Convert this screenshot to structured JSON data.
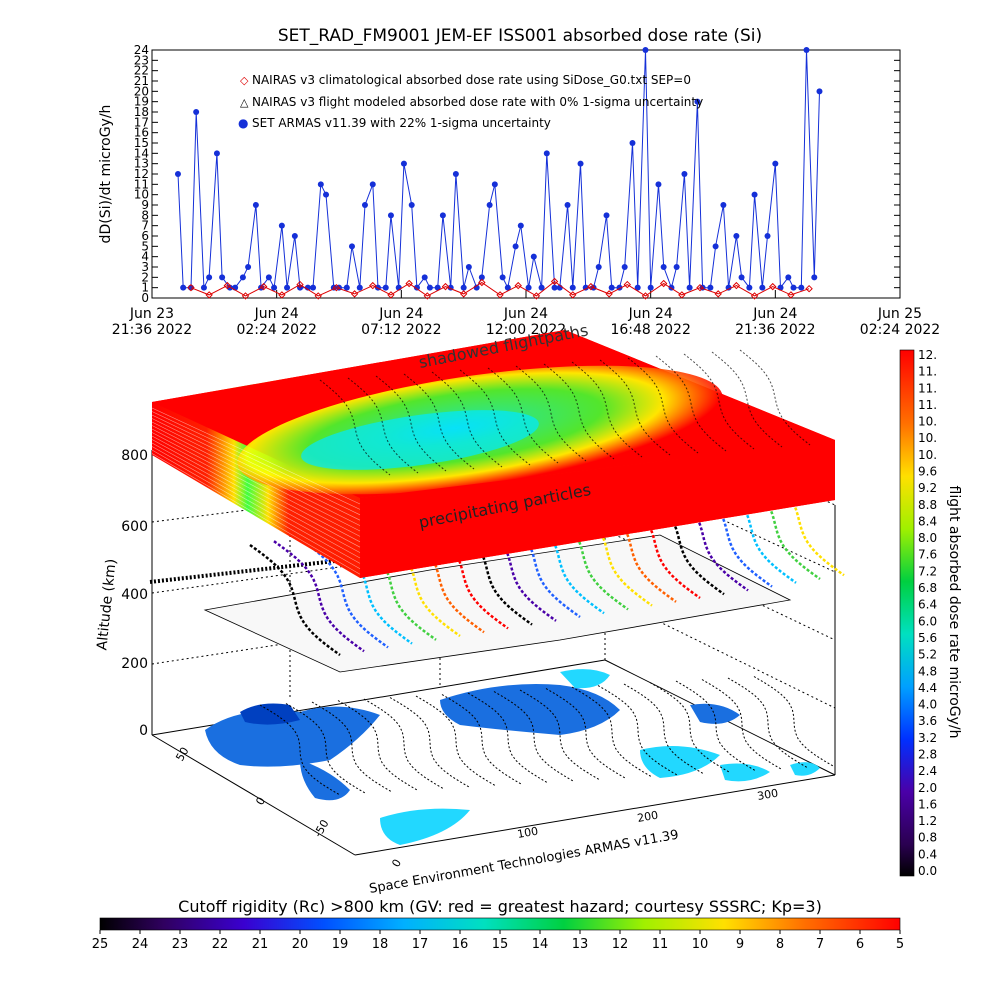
{
  "chart_data": [
    {
      "type": "line",
      "title": "SET_RAD_FM9001  JEM-EF ISS001 absorbed dose rate (Si)",
      "ylabel": "dD(Si)/dt microGy/h",
      "ylim": [
        0,
        24
      ],
      "y_ticks": [
        "0",
        "1",
        "2",
        "3",
        "4",
        "5",
        "6",
        "7",
        "8",
        "9",
        "10",
        "11",
        "12",
        "13",
        "14",
        "15",
        "16",
        "17",
        "18",
        "19",
        "20",
        "21",
        "22",
        "23",
        "24"
      ],
      "x_ticks": [
        {
          "day": "Jun 23",
          "time": "21:36 2022"
        },
        {
          "day": "Jun 24",
          "time": "02:24 2022"
        },
        {
          "day": "Jun 24",
          "time": "07:12 2022"
        },
        {
          "day": "Jun 24",
          "time": "12:00 2022"
        },
        {
          "day": "Jun 24",
          "time": "16:48 2022"
        },
        {
          "day": "Jun 24",
          "time": "21:36 2022"
        },
        {
          "day": "Jun 25",
          "time": "02:24 2022"
        }
      ],
      "legend": [
        {
          "symbol": "◇",
          "color": "#dd0000",
          "label": "NAIRAS v3 climatological absorbed dose rate using SiDose_G0.txt SEP=0"
        },
        {
          "symbol": "△",
          "color": "#000000",
          "label": "NAIRAS v3 flight modeled absorbed dose rate with 0% 1-sigma uncertainty"
        },
        {
          "symbol": "●",
          "color": "#1530d8",
          "label": "SET ARMAS v11.39 with 22% 1-sigma uncertainty"
        }
      ],
      "series": [
        {
          "name": "SET ARMAS v11.39 with 22% 1-sigma uncertainty",
          "color": "#1530d8",
          "x_hours": [
            1.0,
            1.2,
            1.5,
            1.7,
            2.0,
            2.2,
            2.5,
            2.7,
            3.0,
            3.2,
            3.5,
            3.7,
            4.0,
            4.2,
            4.5,
            4.7,
            5.0,
            5.2,
            5.5,
            5.7,
            6.0,
            6.2,
            6.5,
            6.7,
            7.0,
            7.2,
            7.5,
            7.7,
            8.0,
            8.2,
            8.5,
            8.7,
            9.0,
            9.2,
            9.5,
            9.7,
            10.0,
            10.2,
            10.5,
            10.7,
            11.0,
            11.2,
            11.5,
            11.7,
            12.0,
            12.2,
            12.5,
            12.7,
            13.0,
            13.2,
            13.5,
            13.7,
            14.0,
            14.2,
            14.5,
            14.7,
            15.0,
            15.2,
            15.5,
            15.7,
            16.0,
            16.2,
            16.5,
            16.7,
            17.0,
            17.2,
            17.5,
            17.7,
            18.0,
            18.2,
            18.5,
            18.7,
            19.0,
            19.2,
            19.5,
            19.7,
            20.0,
            20.2,
            20.5,
            20.7,
            21.0,
            21.2,
            21.5,
            21.7,
            22.0,
            22.2,
            22.5,
            22.7,
            23.0,
            23.2,
            23.5,
            23.7,
            24.0,
            24.2,
            24.5,
            24.7,
            25.0,
            25.2,
            25.5,
            25.7
          ],
          "values": [
            12,
            1,
            1,
            18,
            1,
            2,
            14,
            2,
            1,
            1,
            2,
            3,
            9,
            1,
            2,
            1,
            7,
            1,
            6,
            1,
            1,
            1,
            11,
            10,
            1,
            1,
            1,
            5,
            1,
            9,
            11,
            1,
            1,
            8,
            1,
            13,
            9,
            1,
            2,
            1,
            1,
            8,
            1,
            12,
            1,
            3,
            1,
            2,
            9,
            11,
            2,
            1,
            5,
            7,
            1,
            4,
            1,
            14,
            1,
            1,
            9,
            1,
            13,
            1,
            1,
            3,
            8,
            1,
            1,
            3,
            15,
            1,
            24,
            1,
            11,
            3,
            1,
            3,
            12,
            1,
            19,
            1,
            1,
            5,
            9,
            1,
            6,
            2,
            1,
            10,
            1,
            6,
            13,
            1,
            2,
            1,
            1,
            24,
            2,
            20
          ]
        },
        {
          "name": "NAIRAS v3 climatological absorbed dose rate using SiDose_G0.txt SEP=0",
          "color": "#dd0000",
          "x_hours": [
            1.5,
            2.2,
            2.9,
            3.6,
            4.3,
            5.0,
            5.7,
            6.4,
            7.1,
            7.8,
            8.5,
            9.2,
            9.9,
            10.6,
            11.3,
            12.0,
            12.7,
            13.4,
            14.1,
            14.8,
            15.5,
            16.2,
            16.9,
            17.6,
            18.3,
            19.0,
            19.7,
            20.4,
            21.1,
            21.8,
            22.5,
            23.2,
            23.9,
            24.6,
            25.3
          ],
          "values": [
            1.0,
            0.3,
            1.2,
            0.2,
            1.1,
            0.3,
            1.3,
            0.2,
            1.0,
            0.4,
            1.2,
            0.3,
            1.4,
            0.2,
            1.1,
            0.4,
            1.5,
            0.3,
            1.2,
            0.2,
            1.6,
            0.3,
            1.1,
            0.4,
            1.3,
            0.2,
            1.4,
            0.3,
            1.0,
            0.4,
            1.2,
            0.2,
            1.1,
            0.3,
            0.9
          ]
        }
      ],
      "xlim_hours": [
        0,
        28.8
      ]
    },
    {
      "type": "heatmap",
      "subtitle": "Space Environment Technologies ARMAS v11.39",
      "ylabel": "Altitude (km)",
      "z_ticks": [
        "0",
        "200",
        "400",
        "600",
        "800"
      ],
      "lat_ticks": [
        "50",
        "0",
        "-50"
      ],
      "lon_ticks": [
        "0",
        "100",
        "200",
        "300"
      ],
      "annotations": [
        "shadowed flightpaths",
        "precipitating particles"
      ],
      "colorbar_right": {
        "label": "flight absorbed dose rate microGy/h",
        "ticks": [
          "12.",
          "11.",
          "11.",
          "11.",
          "10.",
          "10.",
          "10.",
          "9.6",
          "9.2",
          "8.8",
          "8.4",
          "8.0",
          "7.6",
          "7.2",
          "6.8",
          "6.4",
          "6.0",
          "5.6",
          "5.2",
          "4.8",
          "4.4",
          "4.0",
          "3.6",
          "3.2",
          "2.8",
          "2.4",
          "2.0",
          "1.6",
          "1.2",
          "0.8",
          "0.4",
          "0.0"
        ]
      },
      "colorbar_bottom": {
        "label": "Cutoff rigidity (Rc) >800 km (GV: red = greatest hazard; courtesy SSSRC; Kp=3)",
        "ticks": [
          "25",
          "24",
          "23",
          "22",
          "21",
          "20",
          "19",
          "18",
          "17",
          "16",
          "15",
          "14",
          "13",
          "12",
          "11",
          "10",
          "9",
          "8",
          "7",
          "6",
          "5"
        ]
      }
    }
  ]
}
